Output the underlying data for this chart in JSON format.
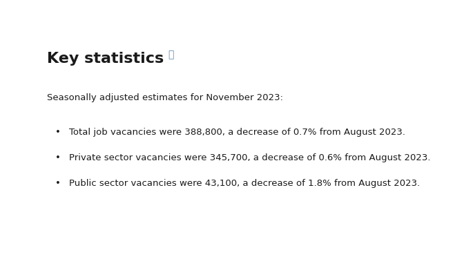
{
  "title": "Key statistics",
  "title_fontsize": 16,
  "title_fontweight": "bold",
  "link_color": "#5b8db8",
  "subtitle": "Seasonally adjusted estimates for November 2023:",
  "subtitle_fontsize": 9.5,
  "bullet_points": [
    "Total job vacancies were 388,800, a decrease of 0.7% from August 2023.",
    "Private sector vacancies were 345,700, a decrease of 0.6% from August 2023.",
    "Public sector vacancies were 43,100, a decrease of 1.8% from August 2023."
  ],
  "bullet_fontsize": 9.5,
  "bullet_color": "#1a1a1a",
  "background_color": "#ffffff",
  "text_color": "#1a1a1a",
  "bullet_symbol": "•"
}
